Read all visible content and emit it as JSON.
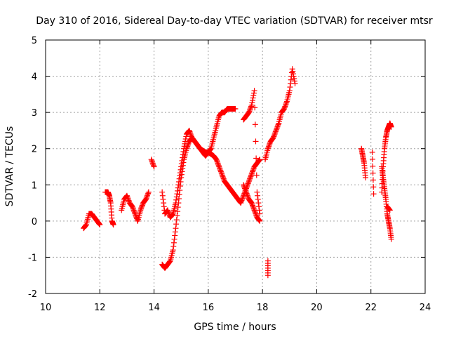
{
  "chart_data": {
    "type": "scatter",
    "title": "Day 310 of 2016, Sidereal Day-to-day VTEC variation (SDTVAR) for receiver mtsr",
    "xlabel": "GPS time / hours",
    "ylabel": "SDTVAR / TECUs",
    "xlim": [
      10,
      24
    ],
    "ylim": [
      -2,
      5
    ],
    "xticks": [
      10,
      12,
      14,
      16,
      18,
      20,
      22,
      24
    ],
    "yticks": [
      -2,
      -1,
      0,
      1,
      2,
      3,
      4,
      5
    ],
    "grid": true,
    "marker": "+",
    "color": "#ff0000",
    "segments": [
      {
        "x": [
          11.4,
          11.5,
          11.6,
          11.7,
          11.8,
          11.9,
          12.0
        ],
        "y": [
          -0.2,
          -0.1,
          0.2,
          0.2,
          0.1,
          0.0,
          -0.1
        ]
      },
      {
        "x": [
          12.2,
          12.3,
          12.35,
          12.4,
          12.45,
          12.5
        ],
        "y": [
          0.8,
          0.8,
          0.7,
          0.5,
          0.0,
          -0.1
        ]
      },
      {
        "x": [
          12.8,
          12.9,
          13.0,
          13.1,
          13.2,
          13.3,
          13.4,
          13.5,
          13.6,
          13.7,
          13.8
        ],
        "y": [
          0.3,
          0.6,
          0.7,
          0.5,
          0.4,
          0.2,
          0.0,
          0.3,
          0.5,
          0.6,
          0.8
        ]
      },
      {
        "x": [
          13.9,
          14.0
        ],
        "y": [
          1.7,
          1.5
        ]
      },
      {
        "x": [
          14.3,
          14.4,
          14.5,
          14.6,
          14.7,
          14.8,
          14.9,
          15.0,
          15.1,
          15.2,
          15.3,
          15.4,
          15.5,
          15.6,
          15.7,
          15.8,
          15.9,
          16.0,
          16.1,
          16.2,
          16.3,
          16.4,
          16.5,
          16.6,
          16.7,
          16.8,
          16.9,
          17.0
        ],
        "y": [
          0.8,
          0.2,
          0.3,
          0.1,
          0.2,
          0.5,
          1.0,
          1.5,
          2.0,
          2.4,
          2.5,
          2.3,
          2.2,
          2.1,
          2.0,
          1.9,
          1.8,
          1.9,
          2.0,
          2.3,
          2.6,
          2.9,
          3.0,
          3.0,
          3.1,
          3.1,
          3.1,
          3.1
        ]
      },
      {
        "x": [
          14.3,
          14.4,
          14.5,
          14.6,
          14.7,
          14.8,
          14.9,
          15.0,
          15.1,
          15.2,
          15.3,
          15.4,
          15.5,
          15.6,
          15.7,
          15.8,
          15.9,
          16.0,
          16.1,
          16.2,
          16.3,
          16.4,
          16.5,
          16.6,
          16.7,
          16.8,
          16.9,
          17.0,
          17.1,
          17.2,
          17.3,
          17.4,
          17.5,
          17.6,
          17.7,
          17.8,
          17.9
        ],
        "y": [
          -1.2,
          -1.3,
          -1.2,
          -1.1,
          -0.8,
          -0.2,
          0.5,
          1.2,
          1.7,
          2.0,
          2.2,
          2.3,
          2.2,
          2.1,
          2.0,
          1.95,
          1.9,
          1.9,
          1.85,
          1.8,
          1.7,
          1.5,
          1.3,
          1.1,
          1.0,
          0.9,
          0.8,
          0.7,
          0.6,
          0.5,
          0.7,
          0.9,
          1.1,
          1.3,
          1.5,
          1.6,
          1.7
        ]
      },
      {
        "x": [
          17.3,
          17.4,
          17.5,
          17.6,
          17.7,
          17.8,
          17.9
        ],
        "y": [
          2.8,
          2.9,
          3.0,
          3.2,
          3.6,
          0.8,
          0.2
        ]
      },
      {
        "x": [
          17.3,
          17.4,
          17.5,
          17.6,
          17.7,
          17.8,
          17.9
        ],
        "y": [
          1.0,
          0.8,
          0.6,
          0.5,
          0.3,
          0.1,
          0.0
        ]
      },
      {
        "x": [
          18.1,
          18.2,
          18.3,
          18.4,
          18.5,
          18.6,
          18.7,
          18.8,
          18.9,
          19.0,
          19.1,
          19.2
        ],
        "y": [
          1.7,
          2.0,
          2.2,
          2.3,
          2.5,
          2.7,
          3.0,
          3.1,
          3.3,
          3.6,
          4.2,
          3.8
        ]
      },
      {
        "x": [
          18.2,
          18.2
        ],
        "y": [
          -1.1,
          -1.5
        ]
      },
      {
        "x": [
          21.65,
          21.7,
          21.75,
          21.8
        ],
        "y": [
          2.0,
          1.8,
          1.6,
          1.2
        ]
      },
      {
        "x": [
          22.05,
          22.1
        ],
        "y": [
          1.9,
          0.75
        ]
      },
      {
        "x": [
          22.4,
          22.45,
          22.5,
          22.55,
          22.6,
          22.65,
          22.7,
          22.75
        ],
        "y": [
          1.5,
          1.2,
          0.9,
          0.6,
          0.2,
          0.0,
          -0.2,
          -0.5
        ]
      },
      {
        "x": [
          22.4,
          22.45,
          22.5,
          22.55,
          22.6,
          22.65,
          22.7,
          22.75
        ],
        "y": [
          0.8,
          1.5,
          2.0,
          2.3,
          2.5,
          2.6,
          2.7,
          2.6
        ]
      },
      {
        "x": [
          22.6,
          22.7
        ],
        "y": [
          0.4,
          0.3
        ]
      }
    ]
  }
}
